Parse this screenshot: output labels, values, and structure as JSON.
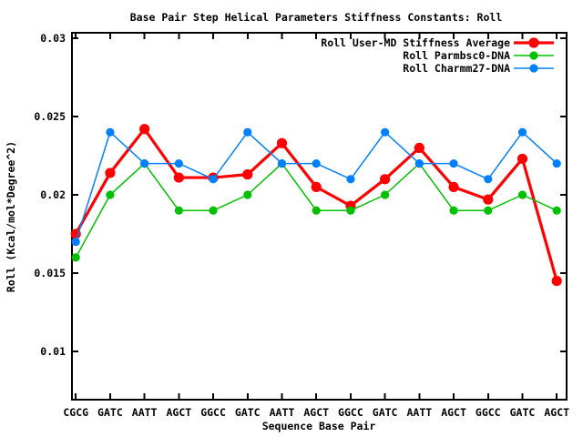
{
  "chart_data": {
    "type": "line",
    "title": "Base Pair Step Helical Parameters Stiffness Constants: Roll",
    "xlabel": "Sequence Base Pair",
    "ylabel": "Roll (Kcal/mol*Degree^2)",
    "categories": [
      "CGCG",
      "GATC",
      "AATT",
      "AGCT",
      "GGCC",
      "GATC",
      "AATT",
      "AGCT",
      "GGCC",
      "GATC",
      "AATT",
      "AGCT",
      "GGCC",
      "GATC",
      "AGCT"
    ],
    "yticks": [
      0.01,
      0.015,
      0.02,
      0.025,
      0.03
    ],
    "ytick_labels": [
      "0.01",
      "0.015",
      "0.02",
      "0.025",
      "0.03"
    ],
    "ylim": [
      0.0069,
      0.0304
    ],
    "grid": false,
    "legend_position": "top-right-inside",
    "background_color": "#ffffff",
    "axis_color": "#000000",
    "series": [
      {
        "name": "Roll User-MD Stiffness Average",
        "color": "#ff0000",
        "line_width": 3.2,
        "marker": "filled-circle",
        "marker_size": 5.6,
        "values": [
          0.0175,
          0.0214,
          0.0242,
          0.0211,
          0.0211,
          0.0213,
          0.0233,
          0.0205,
          0.0193,
          0.021,
          0.023,
          0.0205,
          0.0197,
          0.0223,
          0.0145
        ]
      },
      {
        "name": "Roll Parmbsc0-DNA",
        "color": "#00c000",
        "line_width": 1.5,
        "marker": "filled-circle",
        "marker_size": 4.6,
        "values": [
          0.016,
          0.02,
          0.022,
          0.019,
          0.019,
          0.02,
          0.022,
          0.019,
          0.019,
          0.02,
          0.022,
          0.019,
          0.019,
          0.02,
          0.019
        ]
      },
      {
        "name": "Roll Charmm27-DNA",
        "color": "#0080ff",
        "line_width": 1.5,
        "marker": "filled-circle",
        "marker_size": 4.6,
        "values": [
          0.017,
          0.024,
          0.022,
          0.022,
          0.021,
          0.024,
          0.022,
          0.022,
          0.021,
          0.024,
          0.022,
          0.022,
          0.021,
          0.024,
          0.022
        ]
      }
    ]
  }
}
